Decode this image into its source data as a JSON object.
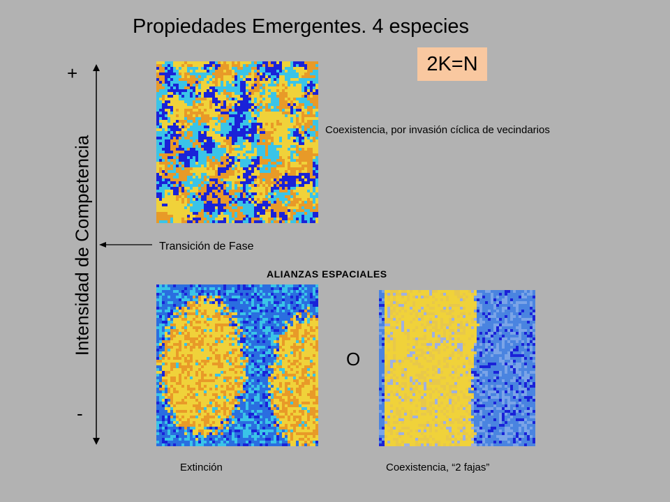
{
  "title": "Propiedades  Emergentes. 4 especies",
  "badge": {
    "text": "2K=N",
    "color": "#f9c8a0"
  },
  "y_axis": {
    "label": "Intensidad de Competencia",
    "top_marker": "+",
    "bottom_marker": "-"
  },
  "transition_label": "Transición de Fase",
  "alliances_label": "ALIANZAS ESPACIALES",
  "or_label": "O",
  "captions": {
    "top": "Coexistencia, por invasión cíclica de vecindarios",
    "bottom_left": "Extinción",
    "bottom_right": "Coexistencia, “2 fajas”"
  },
  "colors": {
    "background": "#b2b2b2",
    "species": [
      "#1a22d8",
      "#3ac4e8",
      "#f0d23a",
      "#e89a28"
    ],
    "alt_blue": "#2a6ee0"
  }
}
